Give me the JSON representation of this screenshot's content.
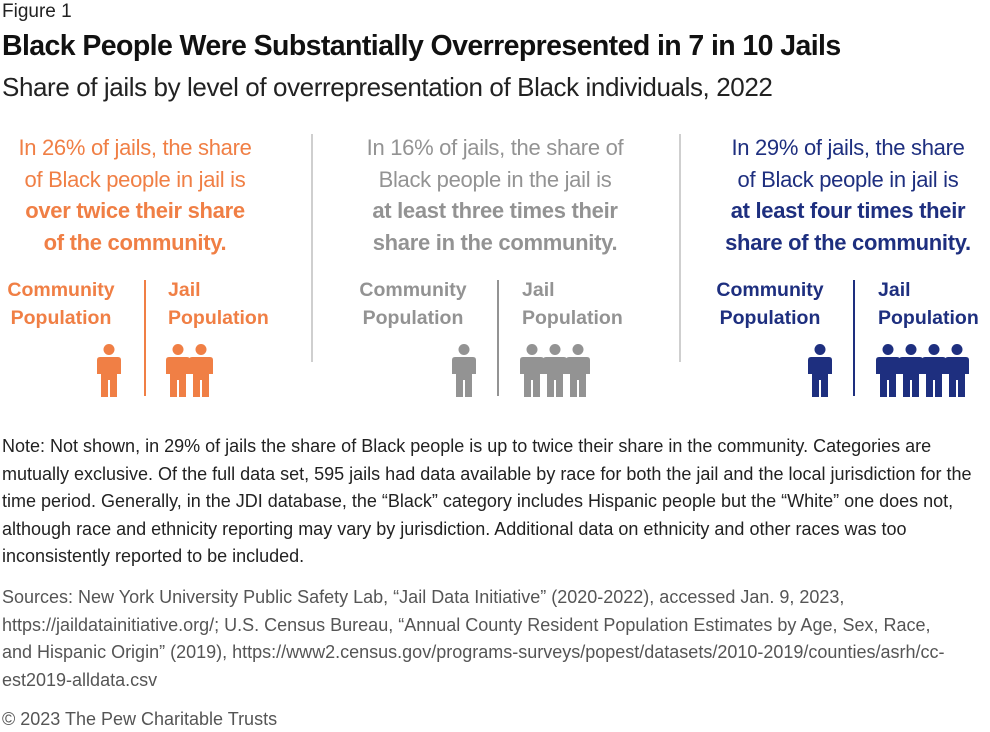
{
  "figure_label": "Figure 1",
  "title": "Black People Were Substantially Overrepresented in 7 in 10 Jails",
  "subtitle": "Share of jails by level of overrepresentation of Black individuals, 2022",
  "colors": {
    "orange": "#F07F45",
    "gray": "#939393",
    "navy": "#1E2F7F",
    "divider": "#CFCFCF"
  },
  "panels": [
    {
      "lines_lead": [
        "In 26% of jails, the share",
        "of Black people in jail is"
      ],
      "lines_emph": [
        "over twice their share",
        "of the community."
      ],
      "community_label": [
        "Community",
        "Population"
      ],
      "jail_label": [
        "Jail",
        "Population"
      ],
      "icon": "person-icon"
    },
    {
      "lines_lead": [
        "In 16% of jails, the share of",
        "Black people in the jail is"
      ],
      "lines_emph": [
        "at least three times their",
        "share in the community."
      ],
      "community_label": [
        "Community",
        "Population"
      ],
      "jail_label": [
        "Jail",
        "Population"
      ],
      "icon": "person-icon"
    },
    {
      "lines_lead": [
        "In 29% of jails, the share",
        "of Black people in jail is"
      ],
      "lines_emph": [
        "at least four times their",
        "share of the community."
      ],
      "community_label": [
        "Community",
        "Population"
      ],
      "jail_label": [
        "Jail",
        "Population"
      ],
      "icon": "person-icon"
    }
  ],
  "chart_data": {
    "type": "table",
    "title": "Black People Were Substantially Overrepresented in 7 in 10 Jails",
    "subtitle": "Share of jails by level of overrepresentation of Black individuals, 2022",
    "categories": [
      "over twice their share of the community",
      "at least three times their share in the community",
      "at least four times their share of the community"
    ],
    "share_of_jails_pct": [
      26,
      16,
      29
    ],
    "community_population_icons": [
      1,
      1,
      1
    ],
    "jail_population_icons": [
      2,
      3,
      4
    ]
  },
  "note": "Note: Not shown, in 29% of jails the share of Black people is up to twice their share in the community. Categories are mutually exclusive. Of the full data set, 595 jails had data available by race for both the jail and the local jurisdiction for the time period. Generally, in the JDI database, the “Black” category includes Hispanic people but the “White” one does not, although race and ethnicity reporting may vary by jurisdiction. Additional data on ethnicity and other races was too inconsistently reported to be included.",
  "sources": "Sources: New York University Public Safety Lab, “Jail Data Initiative” (2020-2022), accessed Jan. 9, 2023, https://jaildatainitiative.org/; U.S. Census Bureau, “Annual County Resident Population Estimates by Age, Sex, Race, and Hispanic Origin” (2019), https://www2.census.gov/programs-surveys/popest/datasets/2010-2019/counties/asrh/cc-est2019-alldata.csv",
  "copyright": "© 2023 The Pew Charitable Trusts"
}
